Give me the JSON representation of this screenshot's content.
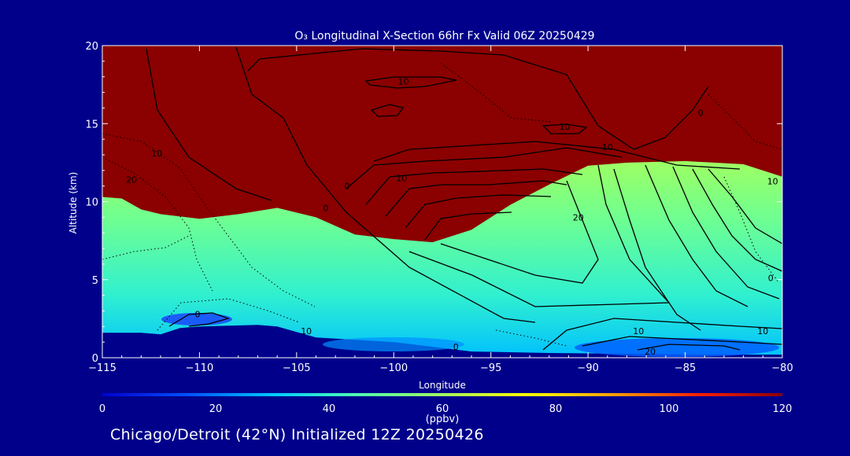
{
  "colors": {
    "background": "#00008b",
    "text": "#ffffff",
    "contour": "#000000",
    "colorbar_stops": [
      "#0000d0",
      "#0050ff",
      "#00c8ff",
      "#50ffb0",
      "#a0ff60",
      "#ffff00",
      "#ffa000",
      "#ff2000",
      "#8b0000"
    ]
  },
  "footer": {
    "text": "Chicago/Detroit (42°N) Initialized 12Z 20250426"
  },
  "chart_data": {
    "type": "heatmap",
    "title": "O₃ Longitudinal X-Section 66hr  Fx Valid 06Z 20250429",
    "xlabel": "Longitude",
    "ylabel": "Altitude (km)",
    "xlim": [
      -115,
      -80
    ],
    "ylim": [
      0,
      20
    ],
    "x_ticks": [
      -115,
      -110,
      -105,
      -100,
      -95,
      -90,
      -85,
      -80
    ],
    "x_tick_labels": [
      "−115",
      "−110",
      "−105",
      "−100",
      "−95",
      "−90",
      "−85",
      "−80"
    ],
    "y_ticks": [
      0,
      5,
      10,
      15,
      20
    ],
    "y_tick_labels": [
      "0",
      "5",
      "10",
      "15",
      "20"
    ],
    "colorbar": {
      "label": "(ppbv)",
      "range": [
        0,
        120
      ],
      "ticks": [
        "0",
        "20",
        "40",
        "60",
        "80",
        "100",
        "120"
      ]
    },
    "surface_layer_top_km": [
      [
        -115,
        1.6
      ],
      [
        -113,
        1.6
      ],
      [
        -112,
        1.5
      ],
      [
        -111,
        1.9
      ],
      [
        -110,
        2.0
      ],
      [
        -107,
        2.1
      ],
      [
        -106,
        2.0
      ],
      [
        -104,
        1.3
      ],
      [
        -100,
        1.0
      ],
      [
        -96,
        0.4
      ],
      [
        -92,
        0.3
      ],
      [
        -88,
        0.25
      ],
      [
        -84,
        0.2
      ],
      [
        -80,
        0.2
      ]
    ],
    "ozone_120ppb_base_km": [
      [
        -115,
        10.3
      ],
      [
        -114,
        10.2
      ],
      [
        -113,
        9.5
      ],
      [
        -112,
        9.2
      ],
      [
        -110,
        8.9
      ],
      [
        -108,
        9.2
      ],
      [
        -106,
        9.6
      ],
      [
        -104,
        9.0
      ],
      [
        -102,
        7.9
      ],
      [
        -100,
        7.6
      ],
      [
        -98,
        7.4
      ],
      [
        -96,
        8.2
      ],
      [
        -94,
        9.8
      ],
      [
        -92,
        11.1
      ],
      [
        -90,
        12.3
      ],
      [
        -88,
        12.5
      ],
      [
        -85,
        12.6
      ],
      [
        -82,
        12.4
      ],
      [
        -80,
        11.6
      ]
    ],
    "contour_labels": [
      {
        "x": -99.5,
        "y": 17.5,
        "text": "10"
      },
      {
        "x": -91.2,
        "y": 14.6,
        "text": "10"
      },
      {
        "x": -89.0,
        "y": 13.3,
        "text": "10"
      },
      {
        "x": -84.2,
        "y": 15.5,
        "text": "0"
      },
      {
        "x": -112.2,
        "y": 12.9,
        "text": "10"
      },
      {
        "x": -113.5,
        "y": 11.2,
        "text": "20"
      },
      {
        "x": -102.4,
        "y": 10.8,
        "text": "0"
      },
      {
        "x": -103.5,
        "y": 9.4,
        "text": "0"
      },
      {
        "x": -99.6,
        "y": 11.3,
        "text": "10"
      },
      {
        "x": -90.5,
        "y": 8.8,
        "text": "20"
      },
      {
        "x": -110.1,
        "y": 2.6,
        "text": "0"
      },
      {
        "x": -104.5,
        "y": 1.5,
        "text": "10"
      },
      {
        "x": -96.8,
        "y": 0.5,
        "text": "0"
      },
      {
        "x": -87.4,
        "y": 1.5,
        "text": "10"
      },
      {
        "x": -86.8,
        "y": 0.2,
        "text": "20"
      },
      {
        "x": -81.0,
        "y": 1.5,
        "text": "10"
      },
      {
        "x": -80.5,
        "y": 11.1,
        "text": "10"
      },
      {
        "x": -80.6,
        "y": 4.9,
        "text": "0"
      }
    ],
    "grid": false,
    "legend": "none"
  }
}
